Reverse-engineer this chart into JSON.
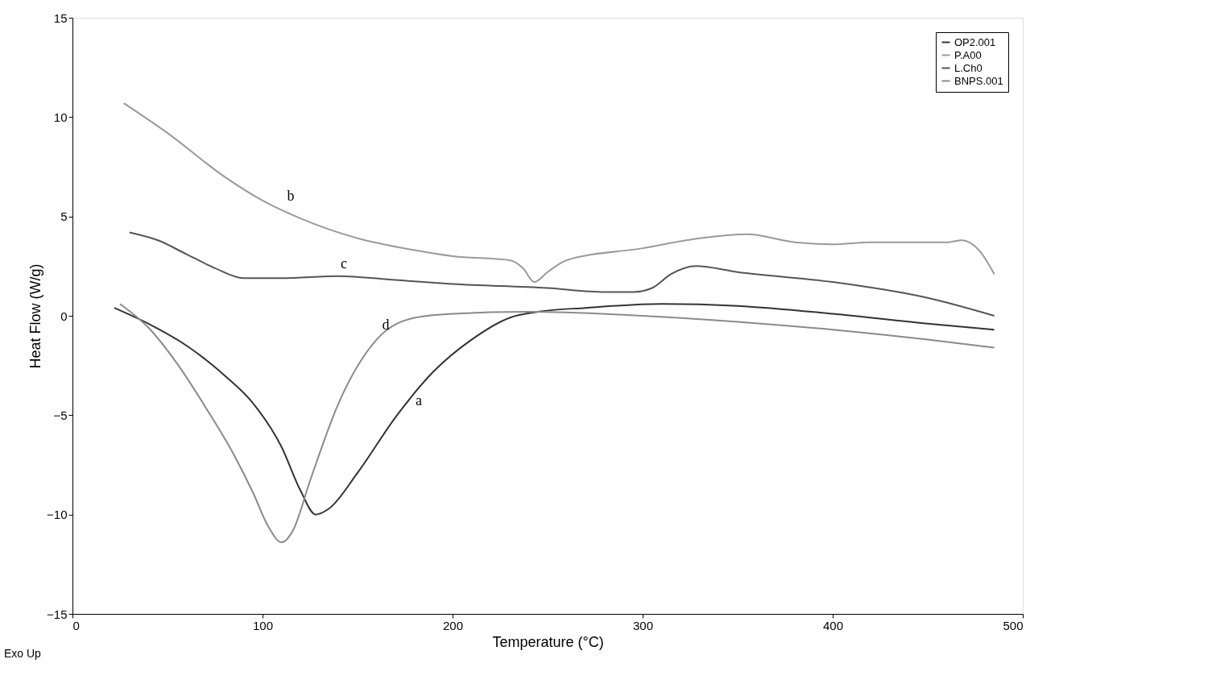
{
  "chart_data": {
    "type": "line",
    "xlabel": "Temperature (°C)",
    "ylabel": "Heat Flow (W/g)",
    "xlim": [
      0,
      500
    ],
    "ylim": [
      -15,
      15
    ],
    "xticks": [
      0,
      100,
      200,
      300,
      400,
      500
    ],
    "yticks": [
      -15,
      -10,
      -5,
      0,
      5,
      10,
      15
    ],
    "grid": false,
    "legend": "top right",
    "marker": "none",
    "line_style": "solid",
    "series": [
      {
        "name": "OP2.001",
        "color": "#333333",
        "x": [
          22,
          40,
          60,
          80,
          95,
          110,
          120,
          128,
          135,
          150,
          170,
          190,
          210,
          230,
          245,
          270,
          310,
          350,
          400,
          450,
          485
        ],
        "values": [
          0.4,
          -0.4,
          -1.5,
          -3.0,
          -4.4,
          -6.6,
          -8.8,
          -10.0,
          -9.7,
          -7.9,
          -5.1,
          -2.8,
          -1.2,
          -0.1,
          0.2,
          0.4,
          0.6,
          0.5,
          0.1,
          -0.4,
          -0.7
        ]
      },
      {
        "name": "P.A00",
        "color": "#9a9a9a",
        "x": [
          27,
          50,
          80,
          100,
          120,
          150,
          180,
          200,
          230,
          237,
          243,
          250,
          260,
          300,
          330,
          355,
          380,
          400,
          420,
          460,
          468,
          477,
          485
        ],
        "values": [
          10.7,
          9.2,
          7.0,
          5.8,
          4.9,
          3.9,
          3.3,
          3.0,
          2.8,
          2.4,
          1.7,
          2.2,
          2.8,
          3.4,
          3.9,
          4.1,
          3.7,
          3.6,
          3.7,
          3.7,
          3.8,
          3.3,
          2.1
        ]
      },
      {
        "name": "L.Ch0",
        "color": "#555555",
        "x": [
          30,
          45,
          60,
          75,
          90,
          110,
          140,
          170,
          200,
          250,
          280,
          295,
          305,
          315,
          328,
          350,
          400,
          450,
          485
        ],
        "values": [
          4.2,
          3.8,
          3.1,
          2.4,
          1.9,
          1.9,
          2.0,
          1.8,
          1.6,
          1.4,
          1.2,
          1.2,
          1.4,
          2.1,
          2.5,
          2.2,
          1.7,
          0.9,
          0.0
        ]
      },
      {
        "name": "BNPS.001",
        "color": "#8a8a8a",
        "x": [
          25,
          40,
          55,
          70,
          85,
          95,
          103,
          110,
          116,
          125,
          140,
          160,
          180,
          200,
          240,
          300,
          350,
          400,
          450,
          485
        ],
        "values": [
          0.6,
          -0.6,
          -2.4,
          -4.6,
          -7.0,
          -8.9,
          -10.6,
          -11.4,
          -10.8,
          -8.3,
          -4.4,
          -1.2,
          -0.1,
          0.1,
          0.2,
          0.0,
          -0.3,
          -0.7,
          -1.2,
          -1.6
        ]
      }
    ],
    "annotations": [
      "a",
      "b",
      "c",
      "d",
      "Exo Up"
    ]
  }
}
